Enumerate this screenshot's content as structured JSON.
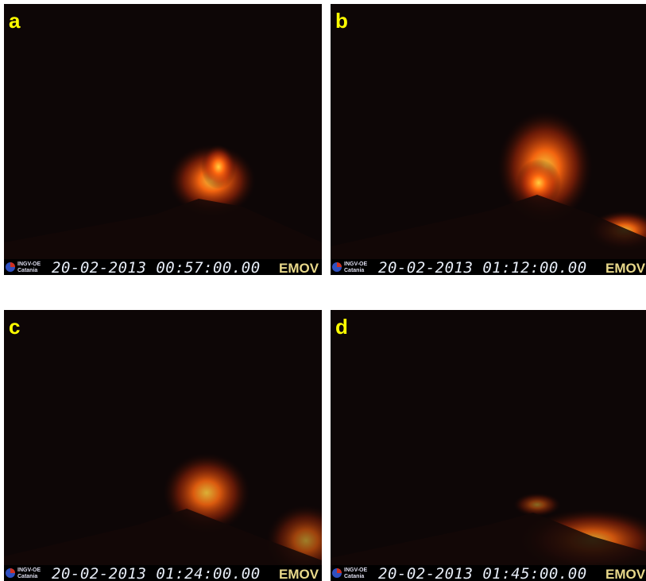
{
  "panels": [
    {
      "label": "a",
      "logo_line1": "INGV-OE",
      "logo_line2": "Catania",
      "timestamp": "20-02-2013 00:57:00.00",
      "watermark": "EMOV"
    },
    {
      "label": "b",
      "logo_line1": "INGV-OE",
      "logo_line2": "Catania",
      "timestamp": "20-02-2013 01:12:00.00",
      "watermark": "EMOV"
    },
    {
      "label": "c",
      "logo_line1": "INGV-OE",
      "logo_line2": "Catania",
      "timestamp": "20-02-2013 01:24:00.00",
      "watermark": "EMOV"
    },
    {
      "label": "d",
      "logo_line1": "INGV-OE",
      "logo_line2": "Catania",
      "timestamp": "20-02-2013 01:45:00.00",
      "watermark": "EMOV"
    }
  ]
}
